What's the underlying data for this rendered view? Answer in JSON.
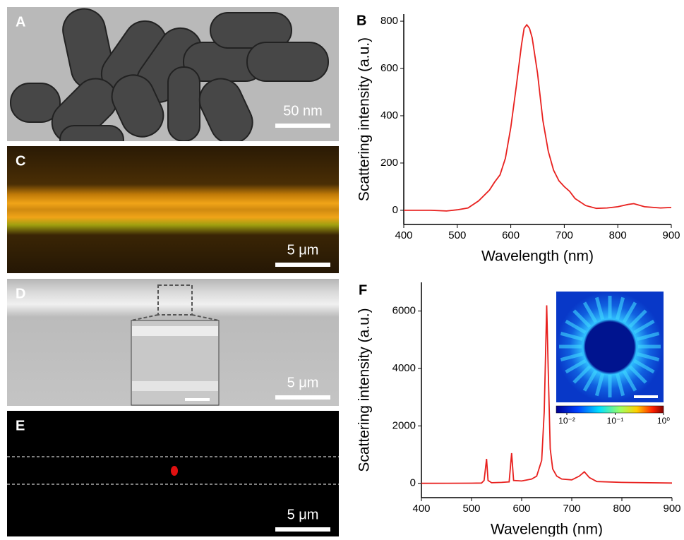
{
  "panels": [
    {
      "label": "A",
      "scale_bar": "50 nm"
    },
    {
      "label": "C",
      "scale_bar": "5 μm"
    },
    {
      "label": "D",
      "scale_bar": "5 μm"
    },
    {
      "label": "E",
      "scale_bar": "5 μm"
    }
  ],
  "chart_data": [
    {
      "type": "line",
      "panel_label": "B",
      "color": "#e8201e",
      "x_label": "Wavelength (nm)",
      "y_label": "Scattering intensity (a.u.)",
      "x": [
        400,
        450,
        480,
        500,
        520,
        540,
        560,
        570,
        580,
        590,
        600,
        610,
        620,
        625,
        630,
        635,
        640,
        650,
        660,
        670,
        680,
        690,
        700,
        710,
        720,
        740,
        760,
        780,
        800,
        820,
        830,
        850,
        880,
        900
      ],
      "values": [
        0,
        0,
        -3,
        2,
        10,
        40,
        85,
        120,
        150,
        220,
        350,
        520,
        700,
        770,
        785,
        770,
        730,
        580,
        380,
        250,
        170,
        125,
        100,
        80,
        50,
        20,
        8,
        10,
        15,
        25,
        28,
        15,
        10,
        12
      ],
      "xlim": [
        400,
        900
      ],
      "ylim": [
        -60,
        830
      ],
      "xticks": [
        400,
        500,
        600,
        700,
        800,
        900
      ],
      "yticks": [
        0,
        200,
        400,
        600,
        800
      ]
    },
    {
      "type": "line",
      "panel_label": "F",
      "color": "#e8201e",
      "x_label": "Wavelength (nm)",
      "y_label": "Scattering intensity (a.u.)",
      "x": [
        400,
        500,
        520,
        525,
        530,
        533,
        540,
        560,
        575,
        580,
        584,
        600,
        620,
        630,
        640,
        645,
        650,
        653,
        657,
        662,
        670,
        680,
        700,
        715,
        725,
        735,
        750,
        800,
        900
      ],
      "values": [
        0,
        5,
        10,
        100,
        850,
        100,
        20,
        30,
        50,
        1050,
        100,
        80,
        150,
        250,
        800,
        2500,
        6200,
        4000,
        1200,
        500,
        250,
        150,
        120,
        250,
        400,
        200,
        60,
        30,
        10
      ],
      "xlim": [
        400,
        900
      ],
      "ylim": [
        -500,
        7000
      ],
      "xticks": [
        400,
        500,
        600,
        700,
        800,
        900
      ],
      "yticks": [
        0,
        2000,
        4000,
        6000
      ],
      "colorbar_ticks": [
        {
          "value": 0.01,
          "label": "10⁻²"
        },
        {
          "value": 0.1,
          "label": "10⁻¹"
        },
        {
          "value": 1,
          "label": "10⁰"
        }
      ],
      "colorbar_lim": [
        0.01,
        1
      ]
    }
  ]
}
